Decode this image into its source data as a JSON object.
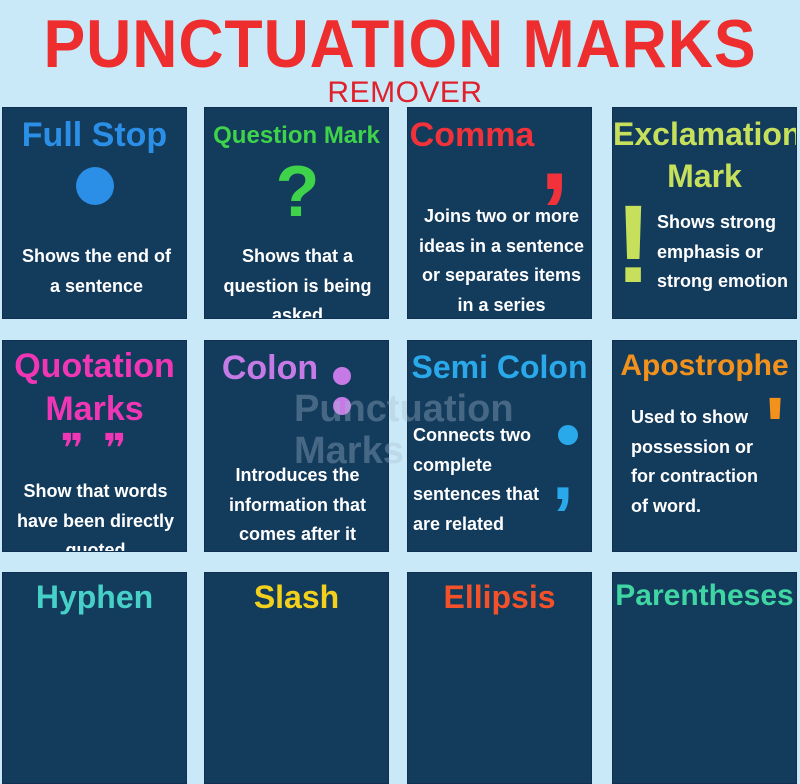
{
  "header": {
    "title": "PUNCTUATION MARKS",
    "subtitle": "REMOVER"
  },
  "watermark": {
    "line1": "Punctuation",
    "line2": "Marks"
  },
  "cards": [
    {
      "title": "Full Stop",
      "glyph": "●",
      "desc": "Shows the end of a sentence",
      "color": "#2b8fe8"
    },
    {
      "title": "Question Mark",
      "glyph": "?",
      "desc": "Shows that a question is being asked",
      "color": "#3ed34a"
    },
    {
      "title": "Comma",
      "glyph": ",",
      "desc": "Joins two or more ideas in a sentence or separates items in a series",
      "color": "#f2323a"
    },
    {
      "title_line1": "Exclamation",
      "title_line2": "Mark",
      "glyph": "!",
      "desc": "Shows strong emphasis or strong emotion",
      "color": "#c7e05b"
    },
    {
      "title_line1": "Quotation",
      "title_line2": "Marks",
      "glyph": "❞ ❞",
      "desc": "Show that words have been directly quoted",
      "color": "#ef36b5"
    },
    {
      "title": "Colon",
      "glyph": ":",
      "desc": "Introduces the information that comes after it",
      "color": "#c57ae6"
    },
    {
      "title": "Semi Colon",
      "glyph": ";",
      "desc": "Connects two complete sentences that are related",
      "color": "#2aa9ea"
    },
    {
      "title": "Apostrophe",
      "glyph": "'",
      "desc": "Used to show possession or for contraction of word.",
      "color": "#f2921c"
    },
    {
      "title": "Hyphen",
      "color": "#46d0c8"
    },
    {
      "title": "Slash",
      "color": "#f2d01c"
    },
    {
      "title": "Ellipsis",
      "color": "#f2512a"
    },
    {
      "title": "Parentheses",
      "color": "#3fd6a3"
    }
  ]
}
